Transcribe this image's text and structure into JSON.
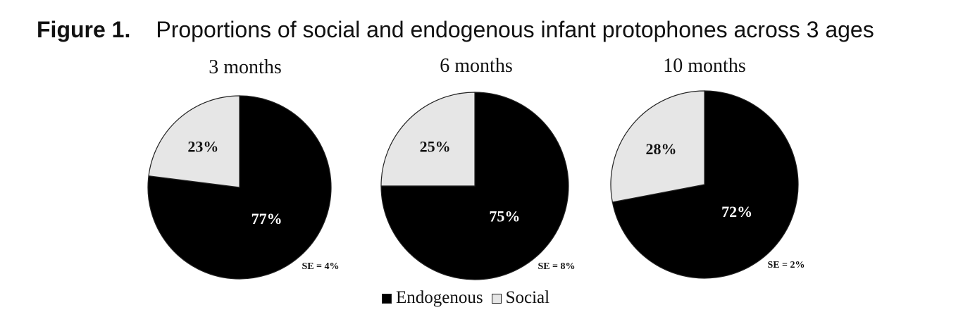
{
  "figure": {
    "label": "Figure 1.",
    "title": "Proportions of social and endogenous infant protophones across 3 ages"
  },
  "colors": {
    "endogenous": "#000000",
    "social": "#e6e6e6",
    "outline": "#222222"
  },
  "chart_data": [
    {
      "type": "pie",
      "title": "3 months",
      "slices": [
        {
          "label": "Endogenous",
          "value": 77,
          "value_label": "77%"
        },
        {
          "label": "Social",
          "value": 23,
          "value_label": "23%"
        }
      ],
      "annotation": "SE = 4%"
    },
    {
      "type": "pie",
      "title": "6 months",
      "slices": [
        {
          "label": "Endogenous",
          "value": 75,
          "value_label": "75%"
        },
        {
          "label": "Social",
          "value": 25,
          "value_label": "25%"
        }
      ],
      "annotation": "SE = 8%"
    },
    {
      "type": "pie",
      "title": "10 months",
      "slices": [
        {
          "label": "Endogenous",
          "value": 72,
          "value_label": "72%"
        },
        {
          "label": "Social",
          "value": 28,
          "value_label": "28%"
        }
      ],
      "annotation": "SE = 2%"
    }
  ],
  "legend": {
    "placement": "bottom-center",
    "items": [
      {
        "label": "Endogenous",
        "color_key": "endogenous"
      },
      {
        "label": "Social",
        "color_key": "social"
      }
    ]
  }
}
